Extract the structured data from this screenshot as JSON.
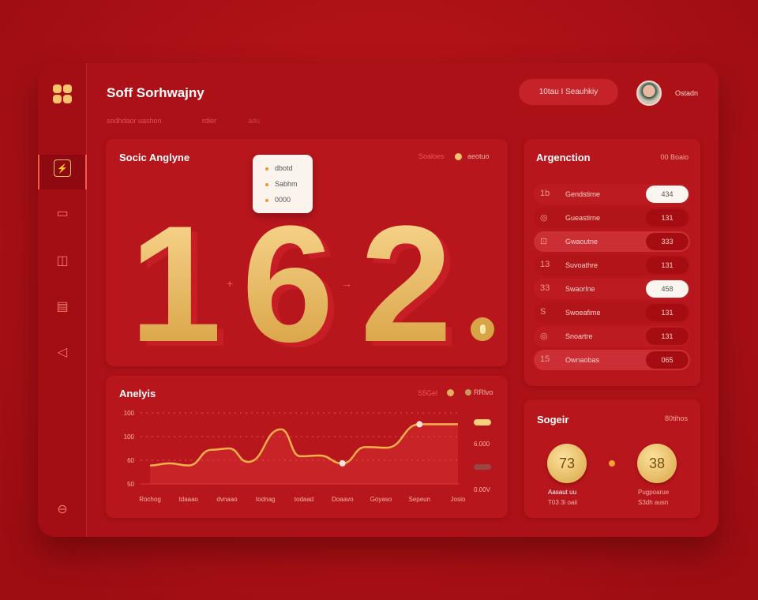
{
  "header": {
    "title": "Soff Sorhwajny",
    "pill_label": "10tau I Seauhkiy",
    "user_name": "Ostadn",
    "tabs": [
      "sodhdaor uashon",
      "rdler",
      "adu"
    ]
  },
  "sidebar": {
    "items": [
      "dashboard-icon",
      "screen-icon",
      "square-icon",
      "card-icon",
      "shield-icon"
    ],
    "bottom": "settings-icon",
    "active_index": 0
  },
  "hero": {
    "title": "Socic Anglyne",
    "legend": [
      "Soaloes",
      "aeotuo"
    ],
    "digits": [
      "1",
      "6",
      "2"
    ],
    "dot": ".",
    "tooltip": [
      "dbotd",
      "Sabhm",
      "0000"
    ]
  },
  "list": {
    "title": "Argenction",
    "action": "00 Boaio",
    "rows": [
      {
        "icon": "1b",
        "label": "Gendstirne",
        "value": "434",
        "highlight": true
      },
      {
        "icon": "◎",
        "label": "Gueastirne",
        "value": "131",
        "highlight": false
      },
      {
        "icon": "⊡",
        "label": "Gwaoutne",
        "value": "333",
        "highlight": false
      },
      {
        "icon": "13",
        "label": "Suvoathre",
        "value": "131",
        "highlight": false
      },
      {
        "icon": "33",
        "label": "Swaorlne",
        "value": "458",
        "highlight": true
      },
      {
        "icon": "S",
        "label": "Swoeafime",
        "value": "131",
        "highlight": false
      },
      {
        "icon": "◎",
        "label": "Snoartre",
        "value": "131",
        "highlight": false
      },
      {
        "icon": "15",
        "label": "Ownaobas",
        "value": "065",
        "highlight": false
      }
    ]
  },
  "chart_data": {
    "type": "line",
    "title": "Anelyis",
    "legend": [
      "S5Gel",
      "RRlvo"
    ],
    "y_tick_labels": [
      "50",
      "60",
      "100",
      "100"
    ],
    "ylim": [
      0,
      100
    ],
    "x_tick_labels": [
      "Rochog",
      "tdaaao",
      "dvnaao",
      "todnag",
      "todaad",
      "Doaavo",
      "Goyaso",
      "Sepeun",
      "Josio"
    ],
    "side_labels": [
      "6.000",
      "0.00V"
    ],
    "series": [
      {
        "color": "#f6b04a",
        "x": [
          0,
          0.5,
          1,
          1.6,
          2.05,
          2.55,
          3.4,
          3.9,
          4.4,
          5,
          5.6,
          6.15,
          7,
          8
        ],
        "y": [
          26,
          29,
          26,
          48,
          50,
          31,
          77,
          39,
          40,
          29,
          52,
          51,
          84,
          84
        ]
      }
    ],
    "markers": [
      {
        "x": 5,
        "y": 29
      },
      {
        "x": 7,
        "y": 84
      }
    ]
  },
  "score": {
    "title": "Sogeir",
    "action": "80tihos",
    "values": [
      "73",
      "38"
    ],
    "labels": [
      [
        "Aasaut uu",
        "T03 3i  oaii"
      ],
      [
        "Pugpoarue",
        "S3dh  ausn"
      ]
    ]
  },
  "colors": {
    "accent": "#f6c46c",
    "bg": "#ac1117"
  }
}
